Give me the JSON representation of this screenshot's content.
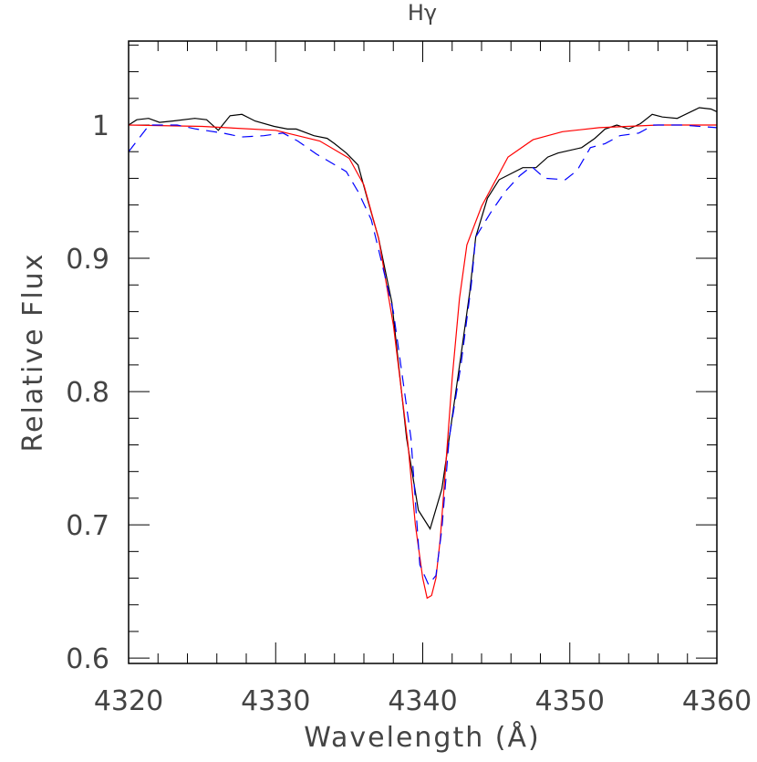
{
  "chart_data": {
    "type": "line",
    "title": "Hγ",
    "xlabel": "Wavelength (Å)",
    "ylabel": "Relative Flux",
    "xlim": [
      4320,
      4360
    ],
    "ylim": [
      0.596,
      1.063
    ],
    "xticks": [
      4320,
      4330,
      4340,
      4350,
      4360
    ],
    "xtick_labels": [
      "4320",
      "4330",
      "4340",
      "4350",
      "4360"
    ],
    "xminor_step": 2,
    "yticks": [
      0.6,
      0.7,
      0.8,
      0.9,
      1.0
    ],
    "ytick_labels": [
      "0.6",
      "0.7",
      "0.8",
      "0.9",
      "1"
    ],
    "yminor_step": 0.02,
    "grid": false,
    "series": [
      {
        "color": "#000000",
        "style": "solid",
        "x": [
          4320.0,
          4320.56,
          4321.36,
          4322.1,
          4323.0,
          4324.5,
          4325.3,
          4326.1,
          4326.9,
          4327.7,
          4328.6,
          4329.9,
          4330.8,
          4331.4,
          4332.6,
          4333.5,
          4334.0,
          4334.8,
          4335.6,
          4336.2,
          4337.0,
          4337.9,
          4338.9,
          4339.7,
          4340.5,
          4341.3,
          4341.8,
          4342.6,
          4343.2,
          4343.6,
          4344.4,
          4345.2,
          4346.8,
          4347.7,
          4348.5,
          4349.2,
          4350.8,
          4351.7,
          4352.4,
          4353.2,
          4354.0,
          4354.8,
          4355.6,
          4356.3,
          4357.3,
          4358.8,
          4359.6,
          4360.0
        ],
        "y": [
          1.0,
          1.004,
          1.005,
          1.002,
          1.003,
          1.005,
          1.004,
          0.996,
          1.007,
          1.008,
          1.003,
          0.999,
          0.997,
          0.997,
          0.992,
          0.99,
          0.986,
          0.979,
          0.97,
          0.946,
          0.915,
          0.867,
          0.765,
          0.711,
          0.697,
          0.727,
          0.765,
          0.827,
          0.875,
          0.916,
          0.945,
          0.959,
          0.968,
          0.968,
          0.976,
          0.979,
          0.983,
          0.99,
          0.997,
          1.0,
          0.997,
          1.001,
          1.008,
          1.006,
          1.005,
          1.013,
          1.012,
          1.01
        ]
      },
      {
        "color": "#ff0000",
        "style": "solid",
        "x": [
          4320,
          4325,
          4330,
          4333,
          4335,
          4336,
          4337,
          4338,
          4339,
          4339.5,
          4340,
          4340.3,
          4340.6,
          4340.9,
          4341.2,
          4341.6,
          4342,
          4342.5,
          4343,
          4344.0,
          4345.8,
          4347.5,
          4349.5,
          4352,
          4356,
          4360
        ],
        "y": [
          1.0,
          0.999,
          0.996,
          0.988,
          0.975,
          0.955,
          0.915,
          0.85,
          0.76,
          0.7,
          0.66,
          0.645,
          0.647,
          0.66,
          0.69,
          0.75,
          0.81,
          0.87,
          0.91,
          0.939,
          0.976,
          0.989,
          0.995,
          0.998,
          1.0,
          1.0
        ]
      },
      {
        "color": "#0000ff",
        "style": "dashed",
        "x": [
          4320,
          4321.4,
          4323.3,
          4324.6,
          4326.4,
          4327.7,
          4329.2,
          4330.5,
          4331.5,
          4332.8,
          4334.2,
          4334.8,
          4335.6,
          4336.5,
          4337.1,
          4338.0,
          4339.2,
          4339.8,
          4340.4,
          4340.9,
          4341.3,
          4341.8,
          4342.6,
          4343.3,
          4343.6,
          4344.6,
          4345.6,
          4346.6,
          4347.4,
          4348.3,
          4349.7,
          4350.5,
          4351.4,
          4352.4,
          4353.4,
          4354.7,
          4355.7,
          4357.6,
          4360
        ],
        "y": [
          0.98,
          1.0,
          1.0,
          0.997,
          0.994,
          0.991,
          0.992,
          0.994,
          0.988,
          0.978,
          0.969,
          0.965,
          0.95,
          0.929,
          0.902,
          0.86,
          0.765,
          0.67,
          0.655,
          0.662,
          0.697,
          0.765,
          0.82,
          0.88,
          0.916,
          0.934,
          0.95,
          0.962,
          0.969,
          0.96,
          0.959,
          0.966,
          0.983,
          0.986,
          0.992,
          0.994,
          1.0,
          1.0,
          0.998
        ]
      }
    ]
  }
}
